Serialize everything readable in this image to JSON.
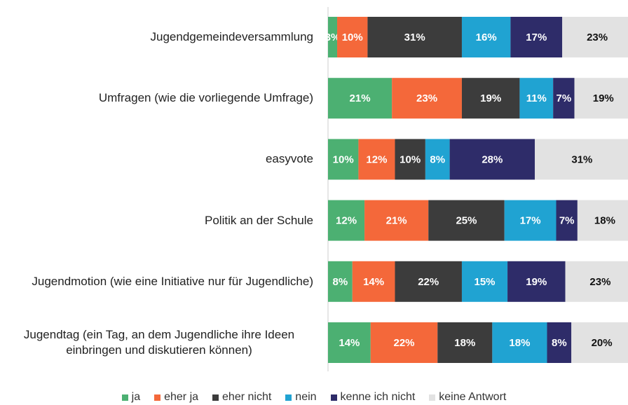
{
  "chart_data": {
    "type": "stacked_bar_horizontal",
    "categories": [
      "Jugendgemeindeversammlung",
      "Umfragen (wie die vorliegende Umfrage)",
      "easyvote",
      "Politik an der Schule",
      "Jugendmotion (wie eine Initiative nur für Jugendliche)",
      "Jugendtag (ein Tag, an dem Jugendliche ihre Ideen einbringen und diskutieren können)"
    ],
    "series": [
      {
        "name": "ja",
        "color": "#4cb072",
        "values": [
          3,
          21,
          10,
          12,
          8,
          14
        ],
        "value_labels": [
          "3%",
          "21%",
          "10%",
          "12%",
          "8%",
          "14%"
        ]
      },
      {
        "name": "eher ja",
        "color": "#f4683a",
        "values": [
          10,
          23,
          12,
          21,
          14,
          22
        ],
        "value_labels": [
          "10%",
          "23%",
          "12%",
          "21%",
          "14%",
          "22%"
        ]
      },
      {
        "name": "eher nicht",
        "color": "#3c3c3c",
        "values": [
          31,
          19,
          10,
          25,
          22,
          18
        ],
        "value_labels": [
          "31%",
          "19%",
          "10%",
          "25%",
          "22%",
          "18%"
        ]
      },
      {
        "name": "nein",
        "color": "#20a3d2",
        "values": [
          16,
          11,
          8,
          17,
          15,
          18
        ],
        "value_labels": [
          "16%",
          "11%",
          "8%",
          "17%",
          "15%",
          "18%"
        ]
      },
      {
        "name": "kenne ich nicht",
        "color": "#2e2c69",
        "values": [
          17,
          7,
          28,
          7,
          19,
          8
        ],
        "value_labels": [
          "17%",
          "7%",
          "28%",
          "7%",
          "19%",
          "8%"
        ]
      },
      {
        "name": "keine Antwort",
        "color": "#e2e2e2",
        "values": [
          23,
          19,
          31,
          18,
          23,
          20
        ],
        "value_labels": [
          "23%",
          "19%",
          "31%",
          "18%",
          "23%",
          "20%"
        ]
      }
    ],
    "legend": "bottom"
  }
}
